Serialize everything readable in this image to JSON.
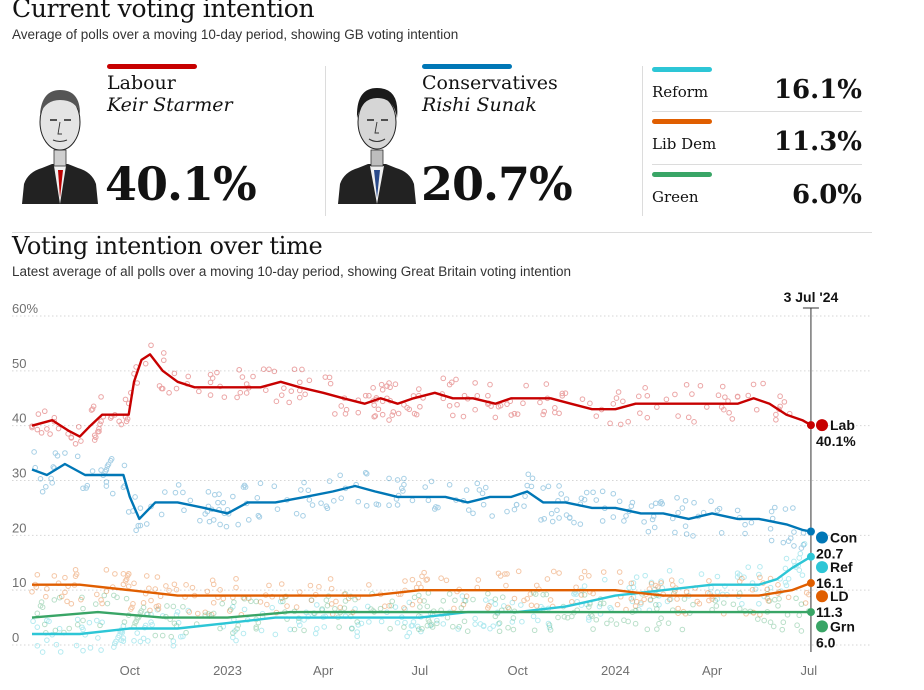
{
  "header": {
    "title": "Current voting intention",
    "subtitle": "Average of polls over a moving 10-day period, showing GB voting intention"
  },
  "parties_major": [
    {
      "name": "Labour",
      "leader": "Keir Starmer",
      "value": "40.1%",
      "color": "#c70000"
    },
    {
      "name": "Conservatives",
      "leader": "Rishi Sunak",
      "value": "20.7%",
      "color": "#0077b6"
    }
  ],
  "parties_minor": [
    {
      "name": "Reform",
      "value": "16.1%",
      "color": "#2dc6d6"
    },
    {
      "name": "Lib Dem",
      "value": "11.3%",
      "color": "#e05e00"
    },
    {
      "name": "Green",
      "value": "6.0%",
      "color": "#39a566"
    }
  ],
  "chart_section": {
    "title": "Voting intention over time",
    "subtitle": "Latest average of all polls over a moving 10-day period, showing Great Britain voting intention"
  },
  "chart_data": {
    "type": "line",
    "ylim": [
      0,
      60
    ],
    "yticks": [
      "0",
      "10",
      "20",
      "30",
      "40",
      "50",
      "60%"
    ],
    "ytick_values": [
      0,
      10,
      20,
      30,
      40,
      50,
      60
    ],
    "xlim": [
      "2022-07-01",
      "2024-07-04"
    ],
    "xticks": [
      {
        "label": "Oct",
        "date": "2022-10-01"
      },
      {
        "label": "2023",
        "date": "2023-01-01"
      },
      {
        "label": "Apr",
        "date": "2023-04-01"
      },
      {
        "label": "Jul",
        "date": "2023-07-01"
      },
      {
        "label": "Oct",
        "date": "2023-10-01"
      },
      {
        "label": "2024",
        "date": "2024-01-01"
      },
      {
        "label": "Apr",
        "date": "2024-04-01"
      },
      {
        "label": "Jul",
        "date": "2024-07-01"
      }
    ],
    "marker": {
      "label": "3 Jul '24",
      "date": "2024-07-03"
    },
    "grid": true,
    "series": [
      {
        "name": "Lab",
        "end_label": "40.1%",
        "color": "#c70000",
        "points": [
          [
            "2022-07-01",
            40
          ],
          [
            "2022-07-20",
            41
          ],
          [
            "2022-08-05",
            39
          ],
          [
            "2022-08-15",
            38
          ],
          [
            "2022-08-25",
            40
          ],
          [
            "2022-09-05",
            42
          ],
          [
            "2022-09-20",
            42
          ],
          [
            "2022-09-30",
            42
          ],
          [
            "2022-10-05",
            48
          ],
          [
            "2022-10-12",
            52
          ],
          [
            "2022-10-20",
            53
          ],
          [
            "2022-11-01",
            50
          ],
          [
            "2022-11-15",
            48
          ],
          [
            "2022-12-01",
            47
          ],
          [
            "2022-12-20",
            47
          ],
          [
            "2023-01-10",
            47
          ],
          [
            "2023-02-01",
            47
          ],
          [
            "2023-02-20",
            48
          ],
          [
            "2023-03-10",
            47
          ],
          [
            "2023-04-01",
            46
          ],
          [
            "2023-04-20",
            45
          ],
          [
            "2023-05-10",
            44
          ],
          [
            "2023-05-25",
            45
          ],
          [
            "2023-06-10",
            44
          ],
          [
            "2023-06-25",
            45
          ],
          [
            "2023-07-15",
            46
          ],
          [
            "2023-08-01",
            45
          ],
          [
            "2023-08-20",
            45
          ],
          [
            "2023-09-10",
            44
          ],
          [
            "2023-09-25",
            45
          ],
          [
            "2023-10-15",
            45
          ],
          [
            "2023-11-01",
            45
          ],
          [
            "2023-11-20",
            44
          ],
          [
            "2023-12-10",
            43
          ],
          [
            "2024-01-01",
            43
          ],
          [
            "2024-01-20",
            44
          ],
          [
            "2024-02-10",
            44
          ],
          [
            "2024-03-01",
            44
          ],
          [
            "2024-03-20",
            44
          ],
          [
            "2024-04-10",
            44
          ],
          [
            "2024-04-25",
            44
          ],
          [
            "2024-05-10",
            45
          ],
          [
            "2024-05-25",
            44
          ],
          [
            "2024-06-10",
            42
          ],
          [
            "2024-06-25",
            41
          ],
          [
            "2024-07-03",
            40.1
          ]
        ]
      },
      {
        "name": "Con",
        "end_label": "20.7",
        "color": "#0077b6",
        "points": [
          [
            "2022-07-01",
            32
          ],
          [
            "2022-07-15",
            31
          ],
          [
            "2022-08-01",
            33
          ],
          [
            "2022-08-20",
            31
          ],
          [
            "2022-09-10",
            31
          ],
          [
            "2022-09-25",
            31
          ],
          [
            "2022-10-01",
            27
          ],
          [
            "2022-10-10",
            23
          ],
          [
            "2022-10-25",
            26
          ],
          [
            "2022-11-15",
            26
          ],
          [
            "2022-12-10",
            25
          ],
          [
            "2023-01-01",
            24
          ],
          [
            "2023-01-20",
            26
          ],
          [
            "2023-02-15",
            26
          ],
          [
            "2023-03-15",
            27
          ],
          [
            "2023-04-10",
            28
          ],
          [
            "2023-05-01",
            29
          ],
          [
            "2023-05-20",
            28
          ],
          [
            "2023-06-10",
            27
          ],
          [
            "2023-07-01",
            27
          ],
          [
            "2023-07-25",
            27
          ],
          [
            "2023-08-15",
            26
          ],
          [
            "2023-09-05",
            27
          ],
          [
            "2023-09-25",
            27
          ],
          [
            "2023-10-10",
            28
          ],
          [
            "2023-10-25",
            26
          ],
          [
            "2023-11-15",
            26
          ],
          [
            "2023-12-10",
            25
          ],
          [
            "2024-01-01",
            25
          ],
          [
            "2024-01-25",
            24
          ],
          [
            "2024-02-15",
            24
          ],
          [
            "2024-03-10",
            23
          ],
          [
            "2024-04-01",
            24
          ],
          [
            "2024-04-25",
            23
          ],
          [
            "2024-05-15",
            23
          ],
          [
            "2024-06-10",
            22
          ],
          [
            "2024-06-25",
            21
          ],
          [
            "2024-07-03",
            20.7
          ]
        ]
      },
      {
        "name": "Ref",
        "end_label": "16.1",
        "color": "#2dc6d6",
        "points": [
          [
            "2022-07-01",
            2
          ],
          [
            "2022-08-15",
            2
          ],
          [
            "2022-10-01",
            3
          ],
          [
            "2022-11-15",
            3
          ],
          [
            "2023-01-01",
            4
          ],
          [
            "2023-02-15",
            5
          ],
          [
            "2023-04-01",
            5
          ],
          [
            "2023-05-15",
            5
          ],
          [
            "2023-07-01",
            5
          ],
          [
            "2023-08-15",
            6
          ],
          [
            "2023-10-01",
            6
          ],
          [
            "2023-11-15",
            7
          ],
          [
            "2024-01-01",
            9
          ],
          [
            "2024-02-15",
            10
          ],
          [
            "2024-04-01",
            11
          ],
          [
            "2024-05-15",
            11
          ],
          [
            "2024-06-01",
            12
          ],
          [
            "2024-06-15",
            14
          ],
          [
            "2024-07-03",
            16.1
          ]
        ]
      },
      {
        "name": "LD",
        "end_label": "11.3",
        "color": "#e05e00",
        "points": [
          [
            "2022-07-01",
            11
          ],
          [
            "2022-08-15",
            11
          ],
          [
            "2022-10-01",
            10
          ],
          [
            "2022-11-15",
            9
          ],
          [
            "2023-01-01",
            9
          ],
          [
            "2023-02-15",
            9
          ],
          [
            "2023-04-01",
            9
          ],
          [
            "2023-05-15",
            9
          ],
          [
            "2023-07-01",
            10
          ],
          [
            "2023-08-15",
            10
          ],
          [
            "2023-10-01",
            10
          ],
          [
            "2023-11-15",
            10
          ],
          [
            "2024-01-01",
            10
          ],
          [
            "2024-02-15",
            9
          ],
          [
            "2024-04-01",
            9
          ],
          [
            "2024-05-15",
            9
          ],
          [
            "2024-06-15",
            10
          ],
          [
            "2024-07-03",
            11.3
          ]
        ]
      },
      {
        "name": "Grn",
        "end_label": "6.0",
        "color": "#39a566",
        "points": [
          [
            "2022-07-01",
            5
          ],
          [
            "2022-09-01",
            6
          ],
          [
            "2022-11-01",
            5
          ],
          [
            "2023-01-01",
            5
          ],
          [
            "2023-03-01",
            6
          ],
          [
            "2023-05-01",
            6
          ],
          [
            "2023-07-01",
            6
          ],
          [
            "2023-09-01",
            6
          ],
          [
            "2023-11-01",
            6
          ],
          [
            "2024-01-01",
            6
          ],
          [
            "2024-03-01",
            6
          ],
          [
            "2024-05-01",
            6
          ],
          [
            "2024-06-15",
            6
          ],
          [
            "2024-07-03",
            6.0
          ]
        ]
      }
    ]
  }
}
